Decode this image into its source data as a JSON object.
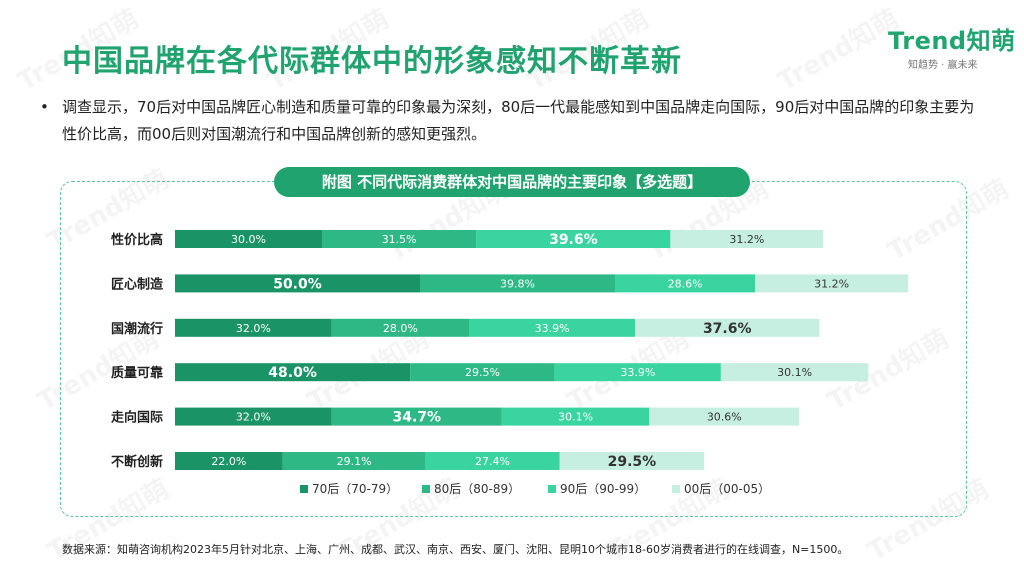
{
  "header": {
    "title": "中国品牌在各代际群体中的形象感知不断革新",
    "logo_main": "Trend知萌",
    "logo_sub": "知趋势 · 赢未来"
  },
  "description": "调查显示，70后对中国品牌匠心制造和质量可靠的印象最为深刻，80后一代最能感知到中国品牌走向国际，90后对中国品牌的印象主要为性价比高，而00后则对国潮流行和中国品牌创新的感知更强烈。",
  "source_note": "数据来源：知萌咨询机构2023年5月针对北京、上海、广州、成都、武汉、南京、西安、厦门、沈阳、昆明10个城市18-60岁消费者进行的在线调查，N=1500。",
  "watermark": "Trend知萌",
  "chart_data": {
    "type": "bar",
    "orientation": "horizontal",
    "stacked": true,
    "title": "附图 不同代际消费群体对中国品牌的主要印象【多选题】",
    "categories": [
      "性价比高",
      "匠心制造",
      "国潮流行",
      "质量可靠",
      "走向国际",
      "不断创新"
    ],
    "series": [
      {
        "name": "70后（70-79）",
        "color": "#1a9466",
        "values": [
          30.0,
          50.0,
          32.0,
          48.0,
          32.0,
          22.0
        ],
        "value_labels": [
          "30.0%",
          "50.0%",
          "32.0%",
          "48.0%",
          "32.0%",
          "22.0%"
        ]
      },
      {
        "name": "80后（80-89）",
        "color": "#2db886",
        "values": [
          31.5,
          39.8,
          28.0,
          29.5,
          34.7,
          29.1
        ],
        "value_labels": [
          "31.5%",
          "39.8%",
          "28.0%",
          "29.5%",
          "34.7%",
          "29.1%"
        ]
      },
      {
        "name": "90后（90-99）",
        "color": "#39d4a0",
        "values": [
          39.6,
          28.6,
          33.9,
          33.9,
          30.1,
          27.4
        ],
        "value_labels": [
          "39.6%",
          "28.6%",
          "33.9%",
          "33.9%",
          "30.1%",
          "27.4%"
        ]
      },
      {
        "name": "00后（00-05）",
        "color": "#c6efe2",
        "values": [
          31.2,
          31.2,
          37.6,
          30.1,
          30.6,
          29.5
        ],
        "value_labels": [
          "31.2%",
          "31.2%",
          "37.6%",
          "30.1%",
          "30.6%",
          "29.5%"
        ]
      }
    ],
    "highlight_labels": [
      [
        2
      ],
      [
        0
      ],
      [
        3
      ],
      [
        0
      ],
      [
        1
      ],
      [
        3
      ]
    ],
    "legend_position": "bottom",
    "grid": false
  }
}
